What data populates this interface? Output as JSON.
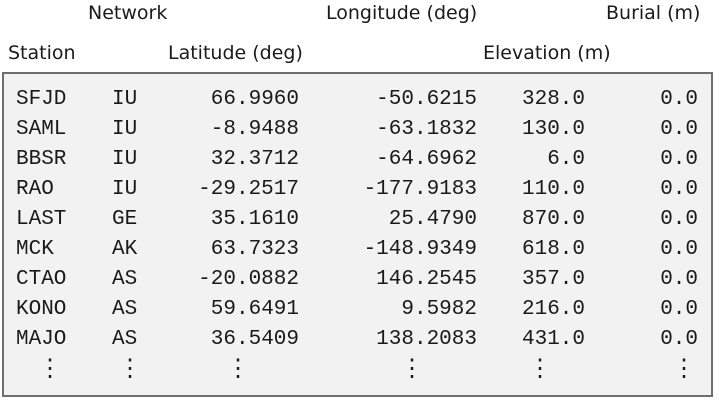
{
  "headers": {
    "network": "Network",
    "longitude": "Longitude (deg)",
    "burial": "Burial (m)",
    "station": "Station",
    "latitude": "Latitude (deg)",
    "elevation": "Elevation (m)"
  },
  "rows": [
    {
      "station": "SFJD",
      "network": "IU",
      "latitude": "66.9960",
      "longitude": "-50.6215",
      "elevation": "328.0",
      "burial": "0.0"
    },
    {
      "station": "SAML",
      "network": "IU",
      "latitude": "-8.9488",
      "longitude": "-63.1832",
      "elevation": "130.0",
      "burial": "0.0"
    },
    {
      "station": "BBSR",
      "network": "IU",
      "latitude": "32.3712",
      "longitude": "-64.6962",
      "elevation": "6.0",
      "burial": "0.0"
    },
    {
      "station": "RAO",
      "network": "IU",
      "latitude": "-29.2517",
      "longitude": "-177.9183",
      "elevation": "110.0",
      "burial": "0.0"
    },
    {
      "station": "LAST",
      "network": "GE",
      "latitude": "35.1610",
      "longitude": "25.4790",
      "elevation": "870.0",
      "burial": "0.0"
    },
    {
      "station": "MCK",
      "network": "AK",
      "latitude": "63.7323",
      "longitude": "-148.9349",
      "elevation": "618.0",
      "burial": "0.0"
    },
    {
      "station": "CTAO",
      "network": "AS",
      "latitude": "-20.0882",
      "longitude": "146.2545",
      "elevation": "357.0",
      "burial": "0.0"
    },
    {
      "station": "KONO",
      "network": "AS",
      "latitude": "59.6491",
      "longitude": "9.5982",
      "elevation": "216.0",
      "burial": "0.0"
    },
    {
      "station": "MAJO",
      "network": "AS",
      "latitude": "36.5409",
      "longitude": "138.2083",
      "elevation": "431.0",
      "burial": "0.0"
    }
  ],
  "continuation": "⋮"
}
